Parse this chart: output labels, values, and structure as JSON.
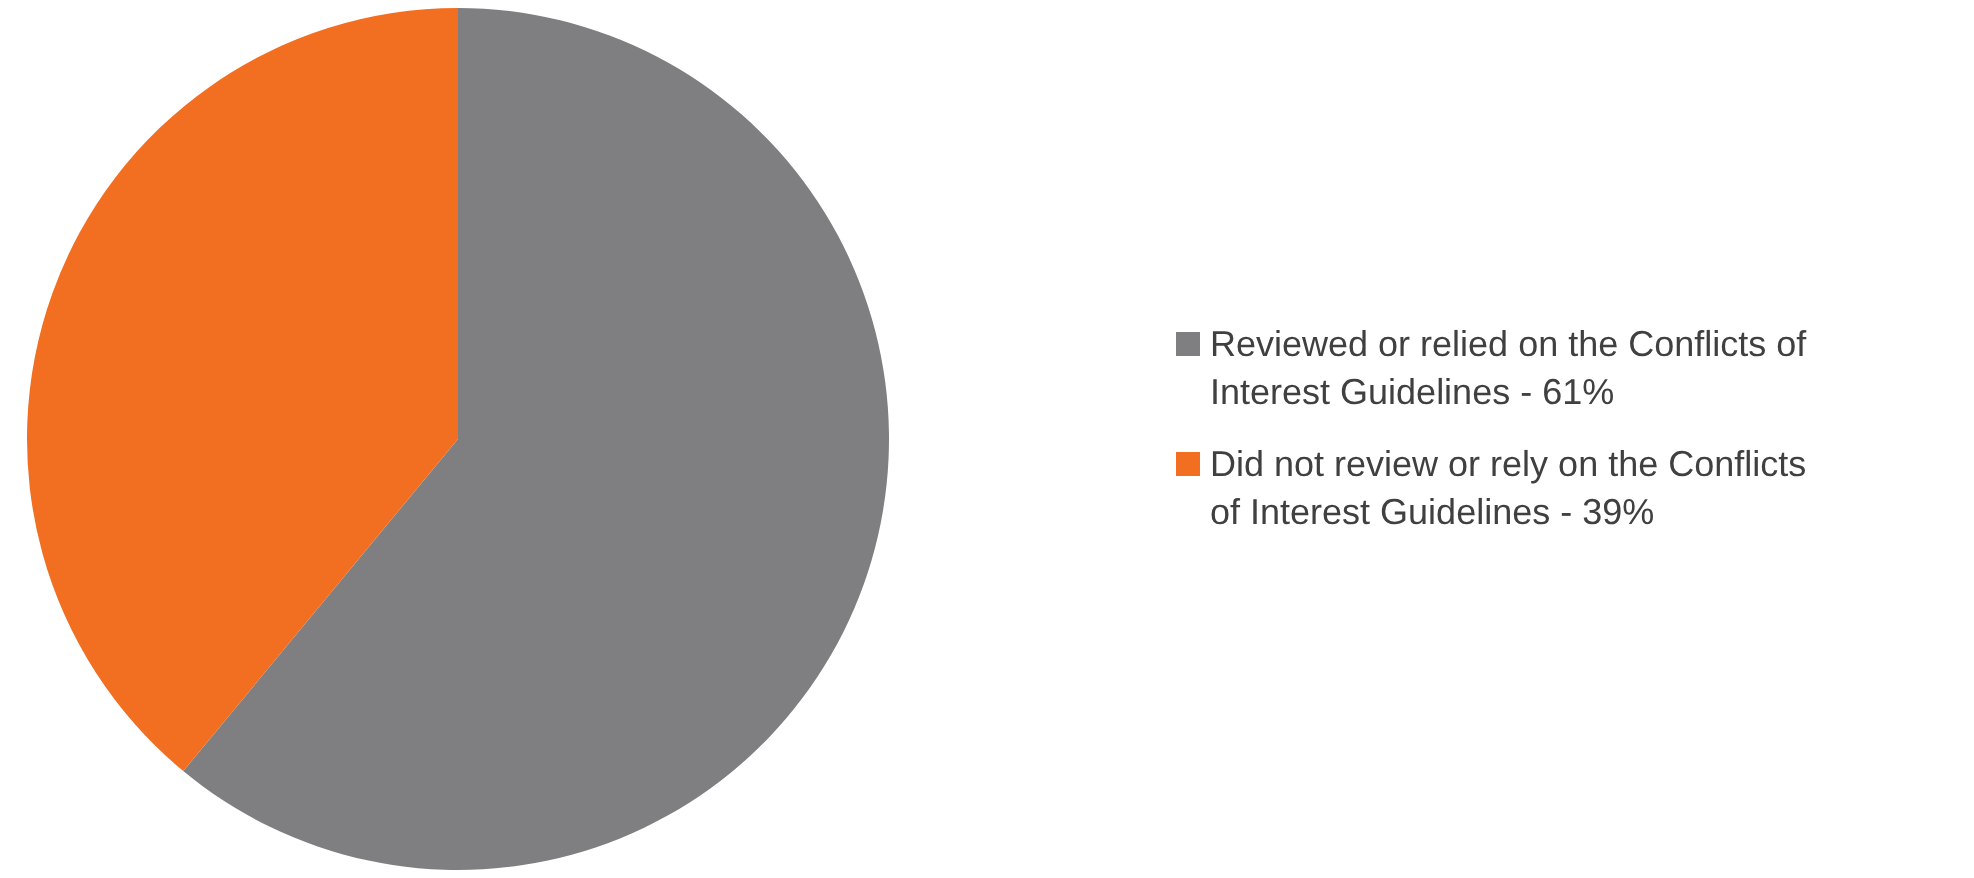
{
  "chart_data": {
    "type": "pie",
    "categories": [
      "Reviewed or relied on the Conflicts of Interest Guidelines - 61%",
      "Did not review or rely on the Conflicts of Interest Guidelines - 39%"
    ],
    "values": [
      61,
      39
    ],
    "colors": [
      "#7f7f82",
      "#f26f21"
    ],
    "legend": "right"
  }
}
